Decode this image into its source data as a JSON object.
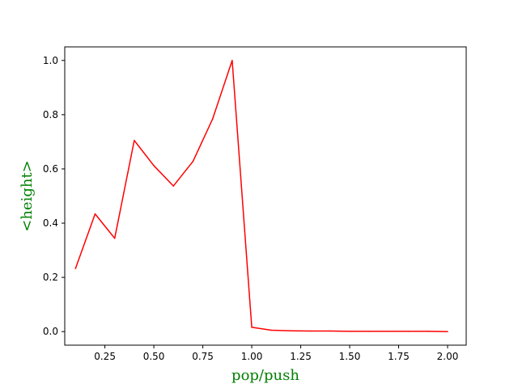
{
  "colors": {
    "line": "#ff0000",
    "label": "#008000",
    "axes": "#000000",
    "background": "#ffffff"
  },
  "chart_data": {
    "type": "line",
    "title": "",
    "xlabel": "pop/push",
    "ylabel": "<height>",
    "xlim": [
      0.045,
      2.095
    ],
    "ylim": [
      -0.05,
      1.05
    ],
    "xticks": [
      0.25,
      0.5,
      0.75,
      1.0,
      1.25,
      1.5,
      1.75,
      2.0
    ],
    "xtick_labels": [
      "0.25",
      "0.50",
      "0.75",
      "1.00",
      "1.25",
      "1.50",
      "1.75",
      "2.00"
    ],
    "yticks": [
      0.0,
      0.2,
      0.4,
      0.6,
      0.8,
      1.0
    ],
    "ytick_labels": [
      "0.0",
      "0.2",
      "0.4",
      "0.6",
      "0.8",
      "1.0"
    ],
    "grid": false,
    "series": [
      {
        "x": [
          0.1,
          0.2,
          0.3,
          0.4,
          0.5,
          0.6,
          0.7,
          0.8,
          0.9,
          1.0,
          1.1,
          1.2,
          1.3,
          1.4,
          1.5,
          1.6,
          1.7,
          1.8,
          1.9,
          2.0
        ],
        "y": [
          0.233,
          0.434,
          0.344,
          0.705,
          0.612,
          0.537,
          0.628,
          0.784,
          1.0,
          0.016,
          0.005,
          0.003,
          0.002,
          0.002,
          0.001,
          0.001,
          0.001,
          0.001,
          0.001,
          0.0
        ]
      }
    ]
  }
}
